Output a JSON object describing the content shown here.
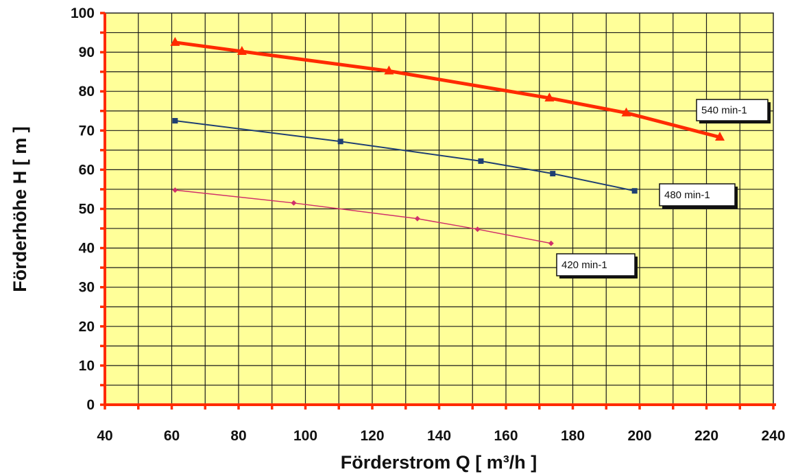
{
  "chart_data": {
    "type": "line",
    "xlabel": "Förderstrom Q [ m³/h ]",
    "ylabel": "Förderhöhe  H [ m ]",
    "xlim": [
      40,
      240
    ],
    "ylim": [
      0,
      100
    ],
    "x_ticks": [
      40,
      60,
      80,
      100,
      120,
      140,
      160,
      180,
      200,
      220,
      240
    ],
    "y_ticks": [
      0,
      10,
      20,
      30,
      40,
      50,
      60,
      70,
      80,
      90,
      100
    ],
    "grid": true,
    "colors": {
      "plot_bg": "#ffff99",
      "axis": "#ff2a00",
      "grid": "#1a1a1a"
    },
    "series": [
      {
        "name": "540 min-1",
        "color": "#ff2a00",
        "marker": "triangle",
        "x": [
          61,
          81,
          125,
          173,
          196,
          224
        ],
        "y": [
          92.5,
          90.2,
          85.2,
          78.3,
          74.5,
          68.3
        ]
      },
      {
        "name": "480 min-1",
        "color": "#1f3f73",
        "marker": "square",
        "x": [
          61,
          110.5,
          152.5,
          174,
          198.5
        ],
        "y": [
          72.5,
          67.2,
          62.2,
          59.0,
          54.6
        ]
      },
      {
        "name": "420 min-1",
        "color": "#d0306a",
        "marker": "diamond",
        "x": [
          61,
          96.5,
          133.5,
          151.5,
          173.5
        ],
        "y": [
          54.8,
          51.5,
          47.5,
          44.8,
          41.2
        ]
      }
    ]
  }
}
